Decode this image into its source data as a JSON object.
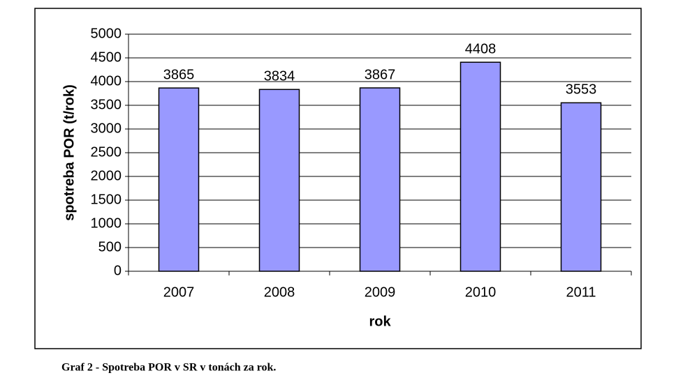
{
  "chart_data": {
    "type": "bar",
    "categories": [
      "2007",
      "2008",
      "2009",
      "2010",
      "2011"
    ],
    "values": [
      3865,
      3834,
      3867,
      4408,
      3553
    ],
    "color": "#9999ff",
    "ylim": [
      0,
      5000
    ],
    "yticks": [
      0,
      500,
      1000,
      1500,
      2000,
      2500,
      3000,
      3500,
      4000,
      4500,
      5000
    ],
    "grid": true,
    "y_label": "spotreba POR (t/rok)",
    "x_label": "rok",
    "caption": "Graf 2 - Spotreba POR v SR v tonách za rok."
  }
}
